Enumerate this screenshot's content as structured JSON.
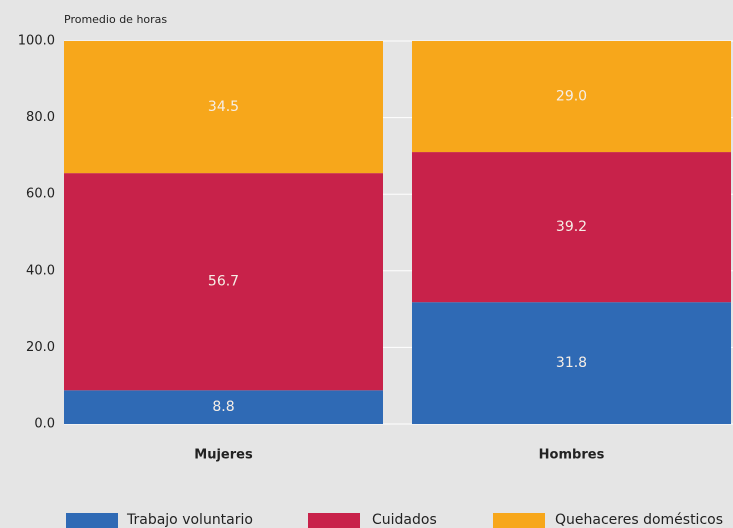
{
  "chart_data": {
    "type": "stacked_bar",
    "ylabel": "Promedio de horas",
    "categories": [
      "Mujeres",
      "Hombres"
    ],
    "series": [
      {
        "name": "Trabajo voluntario",
        "color": "#2f6ab5",
        "values": [
          8.8,
          31.8
        ],
        "value_labels": [
          "8.8",
          "31.8"
        ]
      },
      {
        "name": "Cuidados",
        "color": "#c8224a",
        "values": [
          56.7,
          39.2
        ],
        "value_labels": [
          "56.7",
          "39.2"
        ]
      },
      {
        "name": "Quehaceres domésticos",
        "color": "#f7a71b",
        "values": [
          34.5,
          29
        ],
        "value_labels": [
          "34.5",
          "29.0"
        ]
      }
    ],
    "ylim": [
      0,
      100
    ],
    "yticks": [
      {
        "value": 0,
        "label": "0.0"
      },
      {
        "value": 20,
        "label": "20.0"
      },
      {
        "value": 40,
        "label": "40.0"
      },
      {
        "value": 60,
        "label": "60.0"
      },
      {
        "value": 80,
        "label": "80.0"
      },
      {
        "value": 100,
        "label": "100.0"
      }
    ],
    "grid": true
  }
}
